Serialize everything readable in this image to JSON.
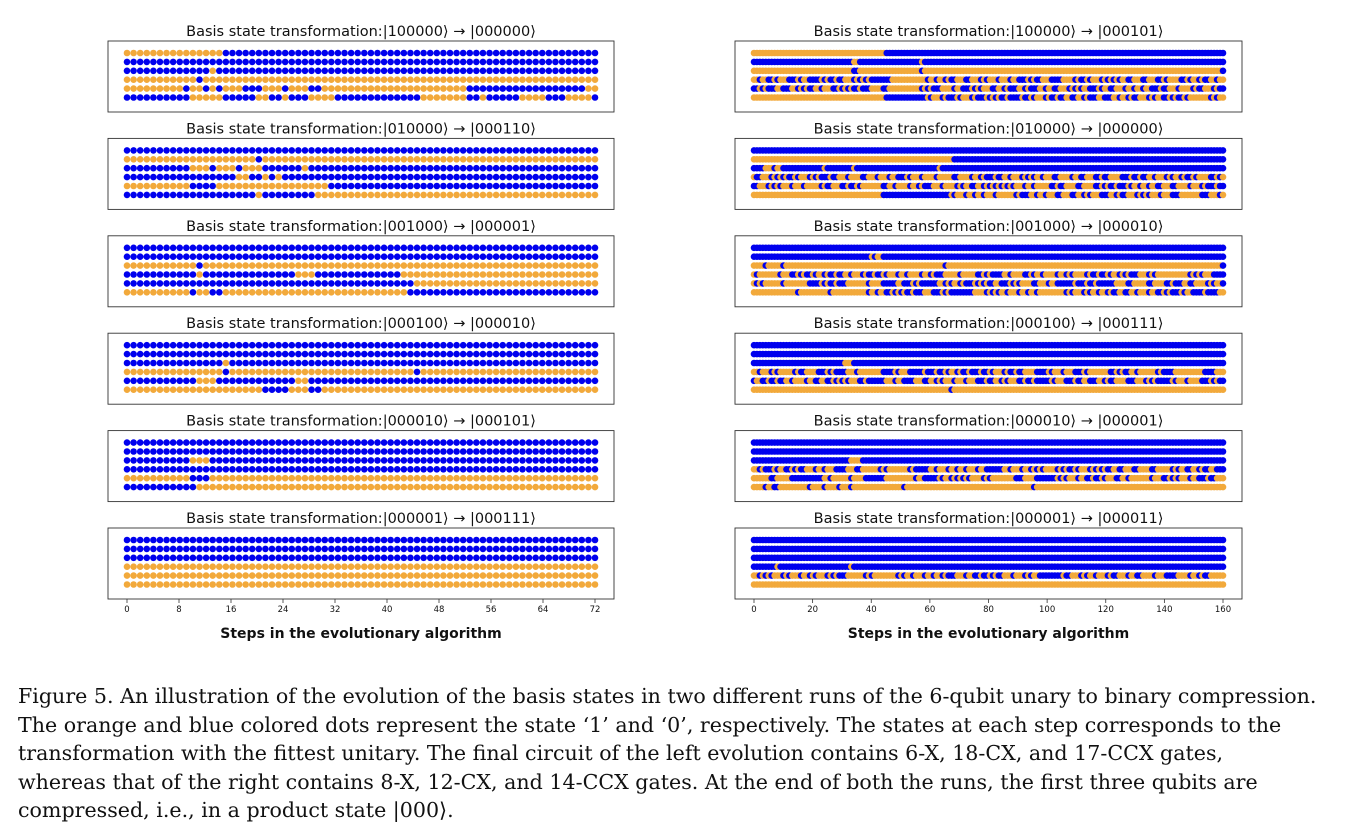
{
  "chart_data": [
    {
      "type": "scatter",
      "column": "left",
      "xlabel": "Steps in the evolutionary algorithm",
      "xlim": [
        -1,
        73
      ],
      "xticks": [
        0,
        8,
        16,
        24,
        32,
        40,
        48,
        56,
        64,
        72
      ],
      "steps": 72,
      "qubits": 6,
      "state_colors": {
        "1": "#f2a93b",
        "0": "#0000ee"
      },
      "panels": [
        {
          "title": "Basis state transformation:|100000⟩ → |000000⟩",
          "rows": [
            "111111111111111000000000000000000000000000000000000000000000000000000000",
            "000000000000000000000000000000000000000000000000000000000000000000000000",
            "000000000000010000000000000000000000000000000000000000000000000000000000",
            "111111111110111111111111111111111111111111111111111111111111111111111111",
            "111111111011010111000111011100111111111111111111111100000000000000000011",
            "000000000011111000001100100011110000000000000111111100100000111100011110"
          ]
        },
        {
          "title": "Basis state transformation:|010000⟩ → |000110⟩",
          "rows": [
            "000000000000000000000000000000000000000000000000000000000000000000000000",
            "111111111111111111110111111111111111111111111111111111111111111111111111",
            "000000000011101110111000000100000000000000000000000000000000000000000000",
            "000000000000000001100101000000000000000000000000000000000000000000000000",
            "111111111100001111111111111111100000000000000000000000000000000000000000",
            "000000000000000000001000000001111111111111111111111111111111111111111111"
          ]
        },
        {
          "title": "Basis state transformation:|001000⟩ → |000001⟩",
          "rows": [
            "000000000000000000000000000000000000000000000000000000000000000000000000",
            "000000000000000000000000000000000000000000000000000000000000000000000000",
            "111111111110111111111111111111111111111111111111111111111111111111111111",
            "000000000001000000000000001110000000000000111111111111111111111111111111",
            "000000000000000000000000000000000000000000001111111111111111111111111111",
            "111111111101100111111111111111111111111111100000000000000000000000000000"
          ]
        },
        {
          "title": "Basis state transformation:|000100⟩ → |000010⟩",
          "rows": [
            "000000000000000000000000000000000000000000000000000000000000000000000000",
            "000000000000000000000000000000000000000000000000000000000000000000000000",
            "000000000000000100000000000000000000000000000000000000000000000000000000",
            "111111111111111011111111111111111111111111110111111111111111111111111111",
            "000000000001110000000000001100000000000000000000000000000000000000000000",
            "111111111111111111111000011100111111111111111111111111111111111111111111"
          ]
        },
        {
          "title": "Basis state transformation:|000010⟩ → |000101⟩",
          "rows": [
            "000000000000000000000000000000000000000000000000000000000000000000000000",
            "000000000000000000000000000000000000000000000000000000000000000000000000",
            "000000000011100000000000000000000000000000000000000000000000000000000000",
            "000000000000000000000000000000000000000000000000000000000000000000000000",
            "111111111100011111111111111111111111111111111111111111111111111111111111",
            "000000000001111111111111111111111111111111111111111111111111111111111111"
          ]
        },
        {
          "title": "Basis state transformation:|000001⟩ → |000111⟩",
          "rows": [
            "000000000000000000000000000000000000000000000000000000000000000000000000",
            "000000000000000000000000000000000000000000000000000000000000000000000000",
            "000000000000000000000000000000000000000000000000000000000000000000000000",
            "111111111111111111111111111111111111111111111111111111111111111111111111",
            "111111111111111111111111111111111111111111111111111111111111111111111111",
            "111111111111111111111111111111111111111111111111111111111111111111111111"
          ]
        }
      ]
    },
    {
      "type": "scatter",
      "column": "right",
      "xlabel": "Steps in the evolutionary algorithm",
      "xlim": [
        -2,
        162
      ],
      "xticks": [
        0,
        20,
        40,
        60,
        80,
        100,
        120,
        140,
        160
      ],
      "steps": 160,
      "qubits": 6,
      "state_colors": {
        "1": "#f2a93b",
        "0": "#0000ee"
      },
      "panels": [
        {
          "title": "Basis state transformation:|100000⟩ → |000101⟩",
          "rows": [
            "1111111111111111111111111111111111111111111110000000000000000000000000000000000000000000000000000000000000000000000000000000000000000000000000000000000000000000",
            "0000000000000000000000000000000000110000000000000000000001000000000000000000000000000000000000000000000000000000000000000000000000000000000000000000000000000000",
            "1111111111111111111111111111111111001111111111111111111110111111111111111111111111111111111111111111111111111111111111111111111111111111111111111111111111111110",
            "1101100101110001011000010100100111010101000000011111111111101101101001110011101011101110110001010011100001111010010111010101011001110011100101111001011010011011",
            "0010100011000110101001101110010101001000111100111111111110101000111101100010101110011010001101000110110011101010110001011001110110110110001001110111101001110100",
            "1111111111111111111111111111111111111111111110000000000000010111010001011101000101010010000100101110100100110011010001100011011010011101011001010010111111101011"
          ]
        },
        {
          "title": "Basis state transformation:|010000⟩ → |000000⟩",
          "rows": [
            "0000000000000000000000000000000000000000000000000000000000000000000000000000000000000000000000000000000000000000000000000000000000000000000000000000000000000000",
            "1111111111111111111111111111111111111111111111111111111111111111111100000000000000000000000000000000000000000000000000000000000000000000000000000000000000000000",
            "0000111011000000000000001000000000100000000000000000000000000001000000000000000000000000000000000000000000000000000000000000000000000000000000000000000000000000",
            "1001110101010010111010100010011101111001110111011000101110111101111100111101101000100110111010101101110011110110011100100111100010010011011101011010010111100101",
            "0011101010111011101111101001110010010111111100110111101101000111011110101100110101010101011101101111100100111100111100101001000101101101100111001111011101000100",
            "1111111111111111111111111111111111111111111100000000000000000000000101110110110111011111101000110110111001110011010111000110100111010101110111000111111100011101"
          ]
        },
        {
          "title": "Basis state transformation:|001000⟩ → |000010⟩",
          "rows": [
            "0000000000000000000000000000000000000000000000000000000000000000000000000000000000000000000000000000000000000000000000000000000000000000000000000000000000000000",
            "0000000000000000000000000000000000000000101100000000000000000000000000000000000000000000000000000000000000000000000000000000000000000000000000000000000000000000",
            "1111011111011111111111111111111111111111111111111111111111111111101111111111111111111111111111111111111111111111111111111111111111111111111111111111111111111110",
            "1011111110111001010010110100100110111010010010111011011110110100011111011111001010000110111100101101111011010111101001001011010100011101011111111111010101110000",
            "1010111111011111111000010100100011111110111100000110001010000001101011010001010100110001010111100111011000000100010010000001111001111100111100100011001111010110",
            "1111111111111110111111111101111111111110110110010101001000111000101000000001111010101101110110110111111111010111010110110100110011011101100101000101100001000011"
          ]
        },
        {
          "title": "Basis state transformation:|000100⟩ → |000111⟩",
          "rows": [
            "0000000000000000000000000000000000000000000000000000000000000000000000000000000000000000000000000000000000000000000000000000000000000000000000000000000000000000",
            "0000000000000000000000000000000000000000000000000000000000000000000000000000000000000000000000000000000000000000000000000000000000000000000000000000000000000000",
            "0000000000000000000000000000000111000000000000000000000000000000000000000000000000000000000000000000000000000000000000000000000000000000000000000000000000000000",
            "1101110101111101001111000101000011101111111100001011100000100010010110100100010010111010010011110000101110111000101111111001010011011111101000011111111110000111",
            "0110010010011011110110011001010101110010000001110110000111001101011101110111000100110101110010010000010111000100110001101001111000111010100000101110111100010100",
            "1111111111111111111111111111111111111111111111111111111111111111111011111111111111111111111111111111111111111111111111111111111111111111111111111111111111111111"
          ]
        },
        {
          "title": "Basis state transformation:|000010⟩ → |000001⟩",
          "rows": [
            "0000000000000000000000000000000000000000000000000000000000000000000000000000000000000000000000000000000000000000000000000000000000000000000000000000000000000000",
            "0000000000000000000000000000000000000000000000000000000000000000000000000000000000000000000000000000000000000000000000000000000000000000000000000000000000000000",
            "0000000000000000000000000000000001111000000000000000000000000000000000000000000000000000000000000000000000000000000000000000000000000000000000000000000000000000",
            "1101000101100101001110110111000011100111111010111111101000001101110110110111011000000110111011010101111010100101110101010011001110011110011111010110011010011000",
            "1111110011111000000000001101111110111100000001111111111011000001011010101011110101111111100011110000000101011101100100101110011011111110111001010111011000100111",
            "1111011001111111111011110111101110111111111111111110111111111111111111111111111111111111111111101111111111111111111111111111111111111111111111111111111111111111"
          ]
        },
        {
          "title": "Basis state transformation:|000001⟩ → |000011⟩",
          "rows": [
            "0000000000000000000000000000000000000000000000000000000000000000000000000000000000000000000000000000000000000000000000000000000000000000000000000000000000000000",
            "0000000000000000000000000000000000000000000000000000000000000000000000000000000000000000000000000000000000000000000000000000000000000000000000000000000000000000",
            "0000000000000000000000000000000000000000000000000000000000000000000000000000000000000000000000000000000000000000000000000000000000000000000000000000000000000000",
            "0000000010000000000000000000000001000000000000000000000000000000000000000000000000000000000000000000000000000000000000000000000000000000000000000000000000000000",
            "1101010111010111011010111010100011111101011111111010110111011011010001110110010010100111011101011000000001001110101101110100111011001111011100001111011010011111",
            "1111111111111111111111111111111111111111111111111111111111111111111111111111111111111111111111111111111111111111111111111111111111111111111111111111111111111111"
          ]
        }
      ]
    }
  ],
  "caption": {
    "lines": [
      "Figure 5. An illustration of the evolution of the basis states in two different runs of the 6-qubit unary to binary compression.",
      "The orange and blue colored dots represent the state ‘1’ and ‘0’, respectively. The states at each step corresponds to the",
      "transformation with the fittest unitary. The final circuit of the left evolution contains 6-X, 18-CX, and 17-CCX gates,",
      "whereas that of the right contains 8-X, 12-CX, and 14-CCX gates. At the end of both the runs, the first three qubits are",
      "compressed, i.e., in a product state |000⟩."
    ]
  }
}
